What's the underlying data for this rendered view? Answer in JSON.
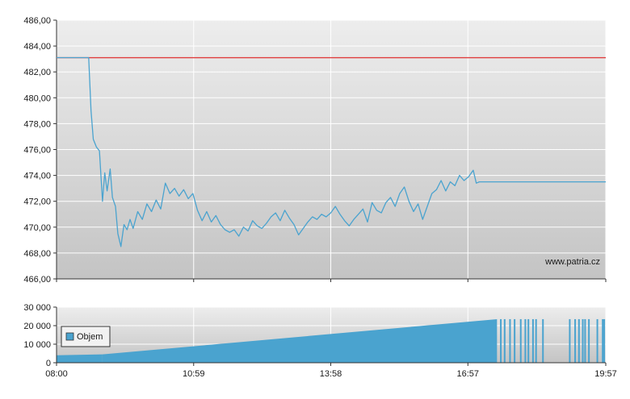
{
  "watermark": "www.patria.cz",
  "chart_data": [
    {
      "type": "line",
      "title": "",
      "xlabel": "",
      "ylabel": "",
      "x_ticks": [
        "08:00",
        "10:59",
        "13:58",
        "16:57",
        "19:57"
      ],
      "y_ticks": [
        "466,00",
        "468,00",
        "470,00",
        "472,00",
        "474,00",
        "476,00",
        "478,00",
        "480,00",
        "482,00",
        "484,00",
        "486,00"
      ],
      "ylim": [
        466,
        486
      ],
      "xlim": [
        "08:00",
        "19:57"
      ],
      "grid": true,
      "colors": {
        "price": "#4aa3cf",
        "reference": "#e03c3c",
        "plot_bg_top": "#ededed",
        "plot_bg_bottom": "#c4c4c4"
      },
      "series": [
        {
          "role": "reference",
          "points": [
            [
              "08:00",
              483.1
            ],
            [
              "19:57",
              483.1
            ]
          ]
        },
        {
          "role": "price",
          "points": [
            [
              "08:00",
              483.1
            ],
            [
              "08:42",
              483.1
            ],
            [
              "08:45",
              479.0
            ],
            [
              "08:48",
              476.8
            ],
            [
              "08:52",
              476.2
            ],
            [
              "08:56",
              475.9
            ],
            [
              "09:00",
              472.0
            ],
            [
              "09:03",
              474.2
            ],
            [
              "09:06",
              472.8
            ],
            [
              "09:10",
              474.5
            ],
            [
              "09:13",
              472.3
            ],
            [
              "09:17",
              471.6
            ],
            [
              "09:20",
              469.5
            ],
            [
              "09:24",
              468.5
            ],
            [
              "09:28",
              470.2
            ],
            [
              "09:32",
              469.8
            ],
            [
              "09:36",
              470.6
            ],
            [
              "09:40",
              469.9
            ],
            [
              "09:46",
              471.2
            ],
            [
              "09:52",
              470.6
            ],
            [
              "09:58",
              471.8
            ],
            [
              "10:04",
              471.2
            ],
            [
              "10:10",
              472.1
            ],
            [
              "10:16",
              471.4
            ],
            [
              "10:22",
              473.4
            ],
            [
              "10:28",
              472.6
            ],
            [
              "10:34",
              473.0
            ],
            [
              "10:40",
              472.4
            ],
            [
              "10:46",
              472.9
            ],
            [
              "10:52",
              472.2
            ],
            [
              "10:58",
              472.6
            ],
            [
              "11:04",
              471.3
            ],
            [
              "11:10",
              470.5
            ],
            [
              "11:16",
              471.2
            ],
            [
              "11:22",
              470.4
            ],
            [
              "11:28",
              470.9
            ],
            [
              "11:34",
              470.2
            ],
            [
              "11:40",
              469.8
            ],
            [
              "11:46",
              469.6
            ],
            [
              "11:52",
              469.8
            ],
            [
              "11:58",
              469.3
            ],
            [
              "12:04",
              470.0
            ],
            [
              "12:10",
              469.7
            ],
            [
              "12:16",
              470.5
            ],
            [
              "12:22",
              470.1
            ],
            [
              "12:28",
              469.9
            ],
            [
              "12:34",
              470.3
            ],
            [
              "12:40",
              470.8
            ],
            [
              "12:46",
              471.1
            ],
            [
              "12:52",
              470.5
            ],
            [
              "12:58",
              471.3
            ],
            [
              "13:04",
              470.7
            ],
            [
              "13:10",
              470.2
            ],
            [
              "13:16",
              469.4
            ],
            [
              "13:22",
              469.9
            ],
            [
              "13:28",
              470.4
            ],
            [
              "13:34",
              470.8
            ],
            [
              "13:40",
              470.6
            ],
            [
              "13:46",
              471.0
            ],
            [
              "13:52",
              470.8
            ],
            [
              "13:58",
              471.1
            ],
            [
              "14:04",
              471.6
            ],
            [
              "14:10",
              471.0
            ],
            [
              "14:16",
              470.5
            ],
            [
              "14:22",
              470.1
            ],
            [
              "14:28",
              470.6
            ],
            [
              "14:34",
              471.0
            ],
            [
              "14:40",
              471.4
            ],
            [
              "14:46",
              470.4
            ],
            [
              "14:52",
              471.9
            ],
            [
              "14:58",
              471.3
            ],
            [
              "15:04",
              471.1
            ],
            [
              "15:10",
              471.9
            ],
            [
              "15:16",
              472.3
            ],
            [
              "15:22",
              471.6
            ],
            [
              "15:28",
              472.6
            ],
            [
              "15:34",
              473.1
            ],
            [
              "15:40",
              472.0
            ],
            [
              "15:46",
              471.2
            ],
            [
              "15:52",
              471.8
            ],
            [
              "15:58",
              470.6
            ],
            [
              "16:04",
              471.6
            ],
            [
              "16:10",
              472.6
            ],
            [
              "16:16",
              472.9
            ],
            [
              "16:22",
              473.6
            ],
            [
              "16:28",
              472.8
            ],
            [
              "16:34",
              473.5
            ],
            [
              "16:40",
              473.2
            ],
            [
              "16:46",
              474.0
            ],
            [
              "16:52",
              473.6
            ],
            [
              "16:58",
              473.9
            ],
            [
              "17:04",
              474.4
            ],
            [
              "17:08",
              473.4
            ],
            [
              "17:12",
              473.5
            ],
            [
              "19:57",
              473.5
            ]
          ]
        }
      ]
    },
    {
      "type": "bar",
      "title": "",
      "xlabel": "",
      "ylabel": "",
      "legend": {
        "position": "left",
        "entries": [
          "Objem"
        ]
      },
      "y_ticks": [
        "0",
        "10 000",
        "20 000",
        "30 000"
      ],
      "ylim": [
        0,
        30000
      ],
      "x_ticks": [
        "08:00",
        "10:59",
        "13:58",
        "16:57",
        "19:57"
      ],
      "grid": true,
      "colors": {
        "bar": "#4aa3cf",
        "plot_bg_top": "#ededed",
        "plot_bg_bottom": "#c4c4c4"
      },
      "series": [
        {
          "name": "Objem",
          "segments": [
            {
              "start": "08:00",
              "end": "09:00",
              "from": 4000,
              "to": 4500
            },
            {
              "start": "09:00",
              "end": "17:35",
              "from": 4500,
              "to": 23500
            }
          ],
          "bars": [
            [
              "17:40",
              23500
            ],
            [
              "17:45",
              23500
            ],
            [
              "17:52",
              23500
            ],
            [
              "17:58",
              23500
            ],
            [
              "18:06",
              23500
            ],
            [
              "18:12",
              23500
            ],
            [
              "18:16",
              23500
            ],
            [
              "18:22",
              23500
            ],
            [
              "18:26",
              23500
            ],
            [
              "18:35",
              23500
            ],
            [
              "19:10",
              23500
            ],
            [
              "19:17",
              23500
            ],
            [
              "19:22",
              23500
            ],
            [
              "19:27",
              23500
            ],
            [
              "19:30",
              23500
            ],
            [
              "19:35",
              23500
            ],
            [
              "19:46",
              23500
            ],
            [
              "19:53",
              23500
            ],
            [
              "19:55",
              23500
            ]
          ]
        }
      ]
    }
  ]
}
